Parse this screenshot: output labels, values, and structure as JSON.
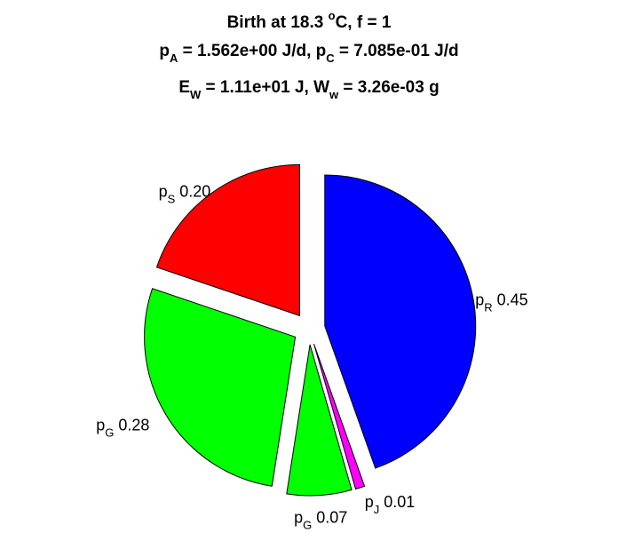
{
  "chart_data": {
    "type": "pie",
    "title_lines": [
      {
        "segments": [
          {
            "t": "Birth at 18.3 "
          },
          {
            "t": "o",
            "s": "sup"
          },
          {
            "t": "C, f = 1"
          }
        ]
      },
      {
        "segments": [
          {
            "t": "p"
          },
          {
            "t": "A",
            "s": "sub"
          },
          {
            "t": " = 1.562e+00 J/d, p"
          },
          {
            "t": "C",
            "s": "sub"
          },
          {
            "t": " = 7.085e-01 J/d"
          }
        ]
      },
      {
        "segments": [
          {
            "t": "E"
          },
          {
            "t": "W",
            "s": "sub"
          },
          {
            "t": " = 1.11e+01 J, W"
          },
          {
            "t": "w",
            "s": "sub"
          },
          {
            "t": " = 3.26e-03 g"
          }
        ]
      }
    ],
    "slices": [
      {
        "symbol": "p",
        "subscript": "R",
        "value": 0.45,
        "label": "0.45",
        "color": "#0000ff"
      },
      {
        "symbol": "p",
        "subscript": "J",
        "value": 0.01,
        "label": "0.01",
        "color": "#ff00ff"
      },
      {
        "symbol": "p",
        "subscript": "G",
        "value": 0.07,
        "label": "0.07",
        "color": "#00ff00"
      },
      {
        "symbol": "p",
        "subscript": "G",
        "value": 0.28,
        "label": "0.28",
        "color": "#00ff00"
      },
      {
        "symbol": "p",
        "subscript": "S",
        "value": 0.2,
        "label": "0.20",
        "color": "#ff0000"
      }
    ],
    "exploded": true,
    "direction": "clockwise",
    "start_angle": "top"
  }
}
